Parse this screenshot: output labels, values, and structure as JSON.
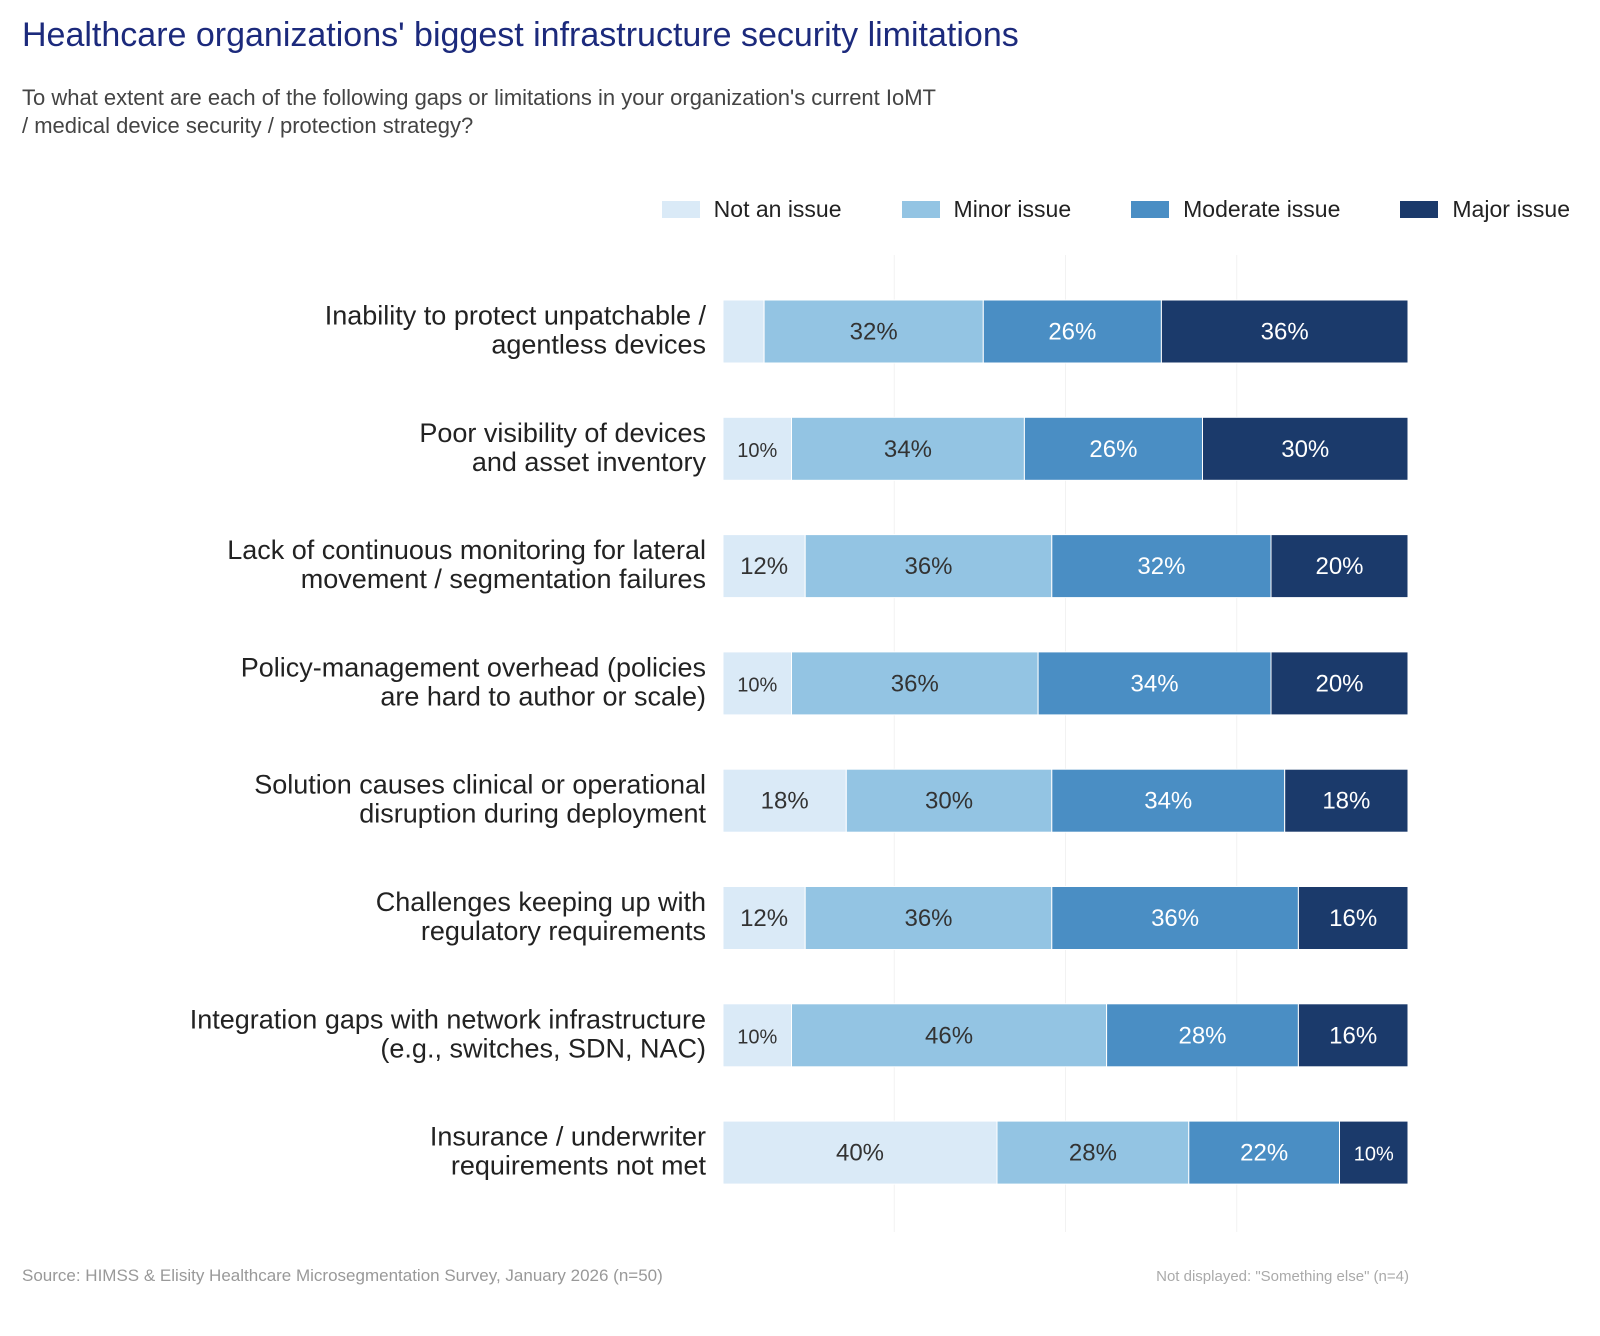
{
  "title": "Healthcare organizations' biggest infrastructure security limitations",
  "subtitle": "To what extent are each of the following gaps or limitations in your organization's current IoMT / medical device security / protection strategy?",
  "source": "Source: HIMSS & Elisity Healthcare Microsegmentation Survey, January 2026 (n=50)",
  "note": "Not displayed: \"Something else\" (n=4)",
  "chart_data": {
    "type": "bar",
    "orientation": "horizontal",
    "stacked": true,
    "unit": "%",
    "xlim": [
      0,
      100
    ],
    "grid": true,
    "legend_position": "top-right",
    "categories": [
      [
        "Inability to protect unpatchable /",
        "agentless devices"
      ],
      [
        "Poor visibility of devices",
        "and asset inventory"
      ],
      [
        "Lack of continuous monitoring for lateral",
        "movement / segmentation failures"
      ],
      [
        "Policy-management overhead (policies",
        "are hard to author or scale)"
      ],
      [
        "Solution causes clinical or operational",
        "disruption during deployment"
      ],
      [
        "Challenges keeping up with",
        "regulatory requirements"
      ],
      [
        "Integration gaps with network infrastructure",
        "(e.g., switches, SDN, NAC)"
      ],
      [
        "Insurance / underwriter",
        "requirements not met"
      ]
    ],
    "series": [
      {
        "name": "Not an issue",
        "color": "#daeaf7",
        "text": "#333",
        "values": [
          6,
          10,
          12,
          10,
          18,
          12,
          10,
          40
        ],
        "labeled": [
          false,
          true,
          true,
          true,
          true,
          true,
          true,
          true
        ]
      },
      {
        "name": "Minor issue",
        "color": "#93c4e3",
        "text": "#333",
        "values": [
          32,
          34,
          36,
          36,
          30,
          36,
          46,
          28
        ]
      },
      {
        "name": "Moderate issue",
        "color": "#4a8ec4",
        "text": "#fff",
        "values": [
          26,
          26,
          32,
          34,
          34,
          36,
          28,
          22
        ]
      },
      {
        "name": "Major issue",
        "color": "#1b3a6b",
        "text": "#fff",
        "values": [
          36,
          30,
          20,
          20,
          18,
          16,
          16,
          10
        ]
      }
    ]
  }
}
